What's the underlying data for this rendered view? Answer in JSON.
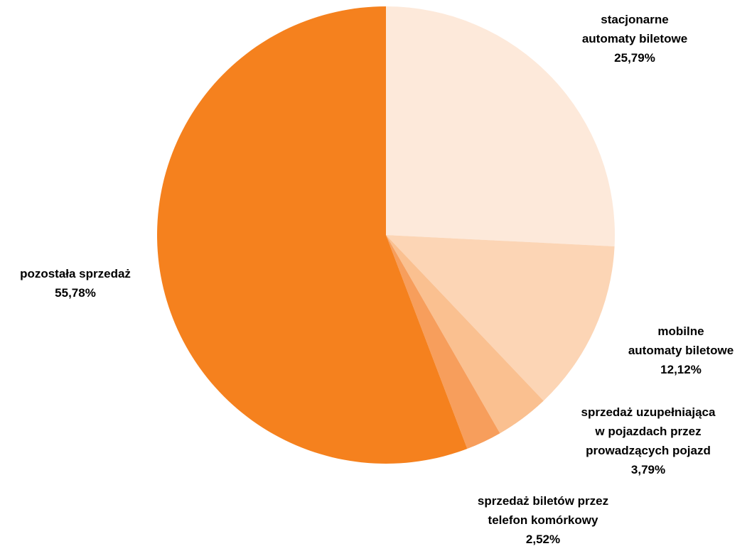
{
  "chart_data": {
    "type": "pie",
    "title": "",
    "start_angle_deg": 0,
    "direction": "clockwise",
    "slices": [
      {
        "label_lines": [
          "stacjonarne",
          "automaty biletowe"
        ],
        "value_text": "25,79%",
        "value": 25.79,
        "color": "#FDE9DA"
      },
      {
        "label_lines": [
          "mobilne",
          "automaty biletowe"
        ],
        "value_text": "12,12%",
        "value": 12.12,
        "color": "#FCD5B5"
      },
      {
        "label_lines": [
          "sprzedaż uzupełniająca",
          "w pojazdach przez",
          "prowadzących pojazd"
        ],
        "value_text": "3,79%",
        "value": 3.79,
        "color": "#FAC090"
      },
      {
        "label_lines": [
          "sprzedaż biletów przez",
          "telefon komórkowy"
        ],
        "value_text": "2,52%",
        "value": 2.52,
        "color": "#F79E5C"
      },
      {
        "label_lines": [
          "pozostała sprzedaż"
        ],
        "value_text": "55,78%",
        "value": 55.78,
        "color": "#F5811E"
      }
    ]
  }
}
